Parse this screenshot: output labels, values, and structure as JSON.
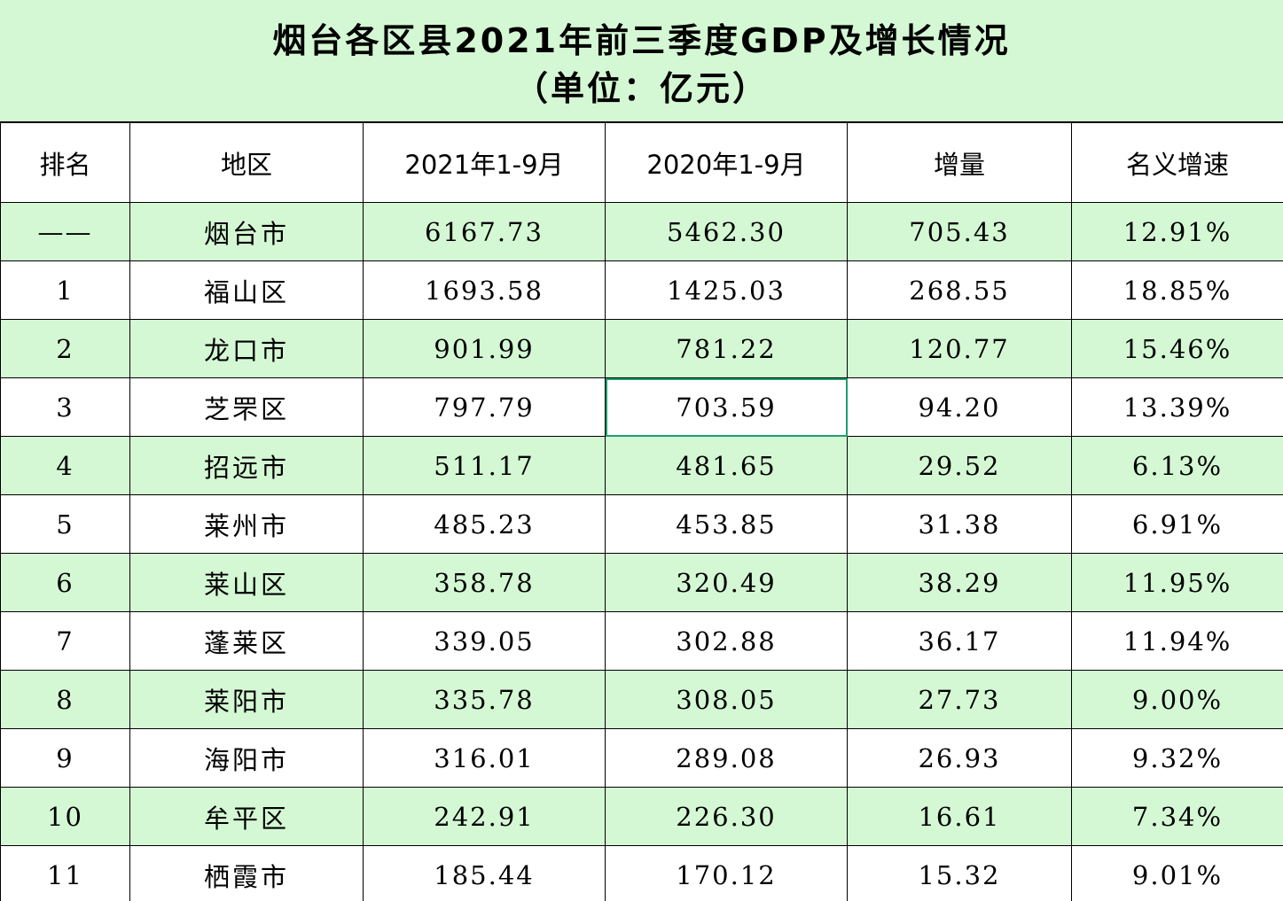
{
  "title": {
    "line1": "烟台各区县2021年前三季度GDP及增长情况",
    "line2": "（单位：亿元）"
  },
  "colors": {
    "band_green": "#d4f8d4",
    "selection_border": "#1f9f6e"
  },
  "headers": {
    "rank": "排名",
    "region": "地区",
    "y2021": "2021年1-9月",
    "y2020": "2020年1-9月",
    "increase": "增量",
    "growth": "名义增速"
  },
  "rows": [
    {
      "rank": "——",
      "region": "烟台市",
      "y2021": "6167.73",
      "y2020": "5462.30",
      "increase": "705.43",
      "growth": "12.91%"
    },
    {
      "rank": "1",
      "region": "福山区",
      "y2021": "1693.58",
      "y2020": "1425.03",
      "increase": "268.55",
      "growth": "18.85%"
    },
    {
      "rank": "2",
      "region": "龙口市",
      "y2021": "901.99",
      "y2020": "781.22",
      "increase": "120.77",
      "growth": "15.46%"
    },
    {
      "rank": "3",
      "region": "芝罘区",
      "y2021": "797.79",
      "y2020": "703.59",
      "increase": "94.20",
      "growth": "13.39%"
    },
    {
      "rank": "4",
      "region": "招远市",
      "y2021": "511.17",
      "y2020": "481.65",
      "increase": "29.52",
      "growth": "6.13%"
    },
    {
      "rank": "5",
      "region": "莱州市",
      "y2021": "485.23",
      "y2020": "453.85",
      "increase": "31.38",
      "growth": "6.91%"
    },
    {
      "rank": "6",
      "region": "莱山区",
      "y2021": "358.78",
      "y2020": "320.49",
      "increase": "38.29",
      "growth": "11.95%"
    },
    {
      "rank": "7",
      "region": "蓬莱区",
      "y2021": "339.05",
      "y2020": "302.88",
      "increase": "36.17",
      "growth": "11.94%"
    },
    {
      "rank": "8",
      "region": "莱阳市",
      "y2021": "335.78",
      "y2020": "308.05",
      "increase": "27.73",
      "growth": "9.00%"
    },
    {
      "rank": "9",
      "region": "海阳市",
      "y2021": "316.01",
      "y2020": "289.08",
      "increase": "26.93",
      "growth": "9.32%"
    },
    {
      "rank": "10",
      "region": "牟平区",
      "y2021": "242.91",
      "y2020": "226.30",
      "increase": "16.61",
      "growth": "7.34%"
    },
    {
      "rank": "11",
      "region": "栖霞市",
      "y2021": "185.44",
      "y2020": "170.12",
      "increase": "15.32",
      "growth": "9.01%"
    }
  ]
}
